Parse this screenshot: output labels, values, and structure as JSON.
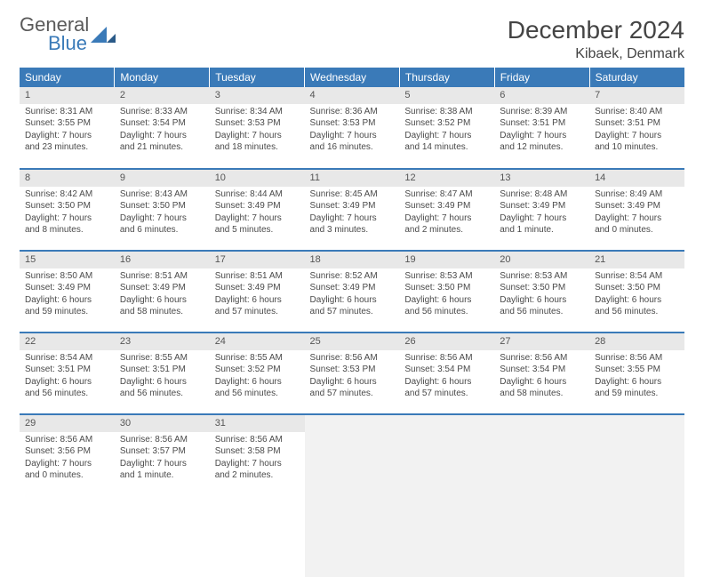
{
  "brand": {
    "name1": "General",
    "name2": "Blue"
  },
  "title": "December 2024",
  "location": "Kibaek, Denmark",
  "colors": {
    "accent": "#3a7ab8",
    "header_text": "#ffffff",
    "daynum_bg": "#e8e8e8",
    "empty_bg": "#f2f2f2",
    "text": "#4a4a4a"
  },
  "weekdays": [
    "Sunday",
    "Monday",
    "Tuesday",
    "Wednesday",
    "Thursday",
    "Friday",
    "Saturday"
  ],
  "weeks": [
    [
      {
        "n": "1",
        "sr": "Sunrise: 8:31 AM",
        "ss": "Sunset: 3:55 PM",
        "d1": "Daylight: 7 hours",
        "d2": "and 23 minutes."
      },
      {
        "n": "2",
        "sr": "Sunrise: 8:33 AM",
        "ss": "Sunset: 3:54 PM",
        "d1": "Daylight: 7 hours",
        "d2": "and 21 minutes."
      },
      {
        "n": "3",
        "sr": "Sunrise: 8:34 AM",
        "ss": "Sunset: 3:53 PM",
        "d1": "Daylight: 7 hours",
        "d2": "and 18 minutes."
      },
      {
        "n": "4",
        "sr": "Sunrise: 8:36 AM",
        "ss": "Sunset: 3:53 PM",
        "d1": "Daylight: 7 hours",
        "d2": "and 16 minutes."
      },
      {
        "n": "5",
        "sr": "Sunrise: 8:38 AM",
        "ss": "Sunset: 3:52 PM",
        "d1": "Daylight: 7 hours",
        "d2": "and 14 minutes."
      },
      {
        "n": "6",
        "sr": "Sunrise: 8:39 AM",
        "ss": "Sunset: 3:51 PM",
        "d1": "Daylight: 7 hours",
        "d2": "and 12 minutes."
      },
      {
        "n": "7",
        "sr": "Sunrise: 8:40 AM",
        "ss": "Sunset: 3:51 PM",
        "d1": "Daylight: 7 hours",
        "d2": "and 10 minutes."
      }
    ],
    [
      {
        "n": "8",
        "sr": "Sunrise: 8:42 AM",
        "ss": "Sunset: 3:50 PM",
        "d1": "Daylight: 7 hours",
        "d2": "and 8 minutes."
      },
      {
        "n": "9",
        "sr": "Sunrise: 8:43 AM",
        "ss": "Sunset: 3:50 PM",
        "d1": "Daylight: 7 hours",
        "d2": "and 6 minutes."
      },
      {
        "n": "10",
        "sr": "Sunrise: 8:44 AM",
        "ss": "Sunset: 3:49 PM",
        "d1": "Daylight: 7 hours",
        "d2": "and 5 minutes."
      },
      {
        "n": "11",
        "sr": "Sunrise: 8:45 AM",
        "ss": "Sunset: 3:49 PM",
        "d1": "Daylight: 7 hours",
        "d2": "and 3 minutes."
      },
      {
        "n": "12",
        "sr": "Sunrise: 8:47 AM",
        "ss": "Sunset: 3:49 PM",
        "d1": "Daylight: 7 hours",
        "d2": "and 2 minutes."
      },
      {
        "n": "13",
        "sr": "Sunrise: 8:48 AM",
        "ss": "Sunset: 3:49 PM",
        "d1": "Daylight: 7 hours",
        "d2": "and 1 minute."
      },
      {
        "n": "14",
        "sr": "Sunrise: 8:49 AM",
        "ss": "Sunset: 3:49 PM",
        "d1": "Daylight: 7 hours",
        "d2": "and 0 minutes."
      }
    ],
    [
      {
        "n": "15",
        "sr": "Sunrise: 8:50 AM",
        "ss": "Sunset: 3:49 PM",
        "d1": "Daylight: 6 hours",
        "d2": "and 59 minutes."
      },
      {
        "n": "16",
        "sr": "Sunrise: 8:51 AM",
        "ss": "Sunset: 3:49 PM",
        "d1": "Daylight: 6 hours",
        "d2": "and 58 minutes."
      },
      {
        "n": "17",
        "sr": "Sunrise: 8:51 AM",
        "ss": "Sunset: 3:49 PM",
        "d1": "Daylight: 6 hours",
        "d2": "and 57 minutes."
      },
      {
        "n": "18",
        "sr": "Sunrise: 8:52 AM",
        "ss": "Sunset: 3:49 PM",
        "d1": "Daylight: 6 hours",
        "d2": "and 57 minutes."
      },
      {
        "n": "19",
        "sr": "Sunrise: 8:53 AM",
        "ss": "Sunset: 3:50 PM",
        "d1": "Daylight: 6 hours",
        "d2": "and 56 minutes."
      },
      {
        "n": "20",
        "sr": "Sunrise: 8:53 AM",
        "ss": "Sunset: 3:50 PM",
        "d1": "Daylight: 6 hours",
        "d2": "and 56 minutes."
      },
      {
        "n": "21",
        "sr": "Sunrise: 8:54 AM",
        "ss": "Sunset: 3:50 PM",
        "d1": "Daylight: 6 hours",
        "d2": "and 56 minutes."
      }
    ],
    [
      {
        "n": "22",
        "sr": "Sunrise: 8:54 AM",
        "ss": "Sunset: 3:51 PM",
        "d1": "Daylight: 6 hours",
        "d2": "and 56 minutes."
      },
      {
        "n": "23",
        "sr": "Sunrise: 8:55 AM",
        "ss": "Sunset: 3:51 PM",
        "d1": "Daylight: 6 hours",
        "d2": "and 56 minutes."
      },
      {
        "n": "24",
        "sr": "Sunrise: 8:55 AM",
        "ss": "Sunset: 3:52 PM",
        "d1": "Daylight: 6 hours",
        "d2": "and 56 minutes."
      },
      {
        "n": "25",
        "sr": "Sunrise: 8:56 AM",
        "ss": "Sunset: 3:53 PM",
        "d1": "Daylight: 6 hours",
        "d2": "and 57 minutes."
      },
      {
        "n": "26",
        "sr": "Sunrise: 8:56 AM",
        "ss": "Sunset: 3:54 PM",
        "d1": "Daylight: 6 hours",
        "d2": "and 57 minutes."
      },
      {
        "n": "27",
        "sr": "Sunrise: 8:56 AM",
        "ss": "Sunset: 3:54 PM",
        "d1": "Daylight: 6 hours",
        "d2": "and 58 minutes."
      },
      {
        "n": "28",
        "sr": "Sunrise: 8:56 AM",
        "ss": "Sunset: 3:55 PM",
        "d1": "Daylight: 6 hours",
        "d2": "and 59 minutes."
      }
    ],
    [
      {
        "n": "29",
        "sr": "Sunrise: 8:56 AM",
        "ss": "Sunset: 3:56 PM",
        "d1": "Daylight: 7 hours",
        "d2": "and 0 minutes."
      },
      {
        "n": "30",
        "sr": "Sunrise: 8:56 AM",
        "ss": "Sunset: 3:57 PM",
        "d1": "Daylight: 7 hours",
        "d2": "and 1 minute."
      },
      {
        "n": "31",
        "sr": "Sunrise: 8:56 AM",
        "ss": "Sunset: 3:58 PM",
        "d1": "Daylight: 7 hours",
        "d2": "and 2 minutes."
      },
      null,
      null,
      null,
      null
    ]
  ]
}
